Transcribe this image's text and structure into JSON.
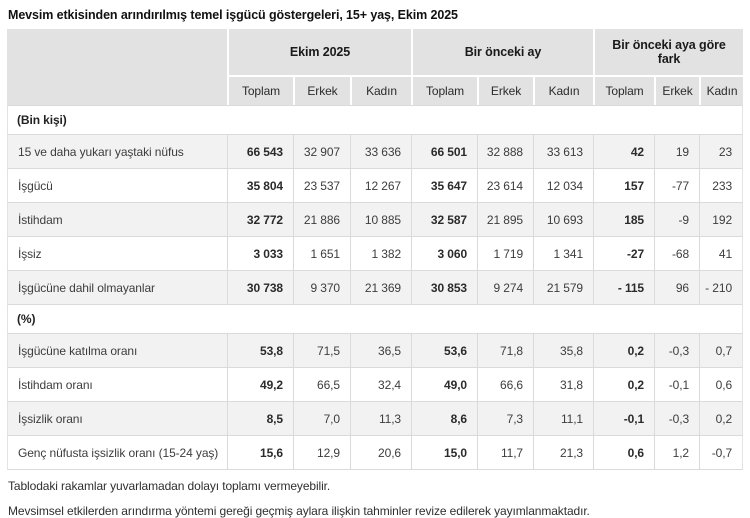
{
  "title": "Mevsim etkisinden arındırılmış temel işgücü göstergeleri, 15+ yaş, Ekim 2025",
  "table": {
    "column_groups": [
      {
        "label": "Ekim 2025"
      },
      {
        "label": "Bir önceki ay"
      },
      {
        "label": "Bir önceki aya göre fark"
      }
    ],
    "sub_headers": [
      "Toplam",
      "Erkek",
      "Kadın",
      "Toplam",
      "Erkek",
      "Kadın",
      "Toplam",
      "Erkek",
      "Kadın"
    ],
    "sections": [
      {
        "header": "(Bin kişi)",
        "rows": [
          {
            "label": "15 ve daha yukarı yaştaki nüfus",
            "values": [
              "66 543",
              "32 907",
              "33 636",
              "66 501",
              "32 888",
              "33 613",
              "42",
              "19",
              "23"
            ]
          },
          {
            "label": "İşgücü",
            "values": [
              "35 804",
              "23 537",
              "12 267",
              "35 647",
              "23 614",
              "12 034",
              "157",
              "-77",
              "233"
            ]
          },
          {
            "label": "İstihdam",
            "values": [
              "32 772",
              "21 886",
              "10 885",
              "32 587",
              "21 895",
              "10 693",
              "185",
              "-9",
              "192"
            ]
          },
          {
            "label": "İşsiz",
            "values": [
              "3 033",
              "1 651",
              "1 382",
              "3 060",
              "1 719",
              "1 341",
              "-27",
              "-68",
              "41"
            ]
          },
          {
            "label": "İşgücüne dahil olmayanlar",
            "values": [
              "30 738",
              "9 370",
              "21 369",
              "30 853",
              "9 274",
              "21 579",
              "- 115",
              "96",
              "- 210"
            ]
          }
        ]
      },
      {
        "header": "(%)",
        "rows": [
          {
            "label": "İşgücüne katılma oranı",
            "values": [
              "53,8",
              "71,5",
              "36,5",
              "53,6",
              "71,8",
              "35,8",
              "0,2",
              "-0,3",
              "0,7"
            ]
          },
          {
            "label": "İstihdam oranı",
            "values": [
              "49,2",
              "66,5",
              "32,4",
              "49,0",
              "66,6",
              "31,8",
              "0,2",
              "-0,1",
              "0,6"
            ]
          },
          {
            "label": "İşsizlik oranı",
            "values": [
              "8,5",
              "7,0",
              "11,3",
              "8,6",
              "7,3",
              "11,1",
              "-0,1",
              "-0,3",
              "0,2"
            ]
          },
          {
            "label": "Genç nüfusta işsizlik oranı (15-24 yaş)",
            "values": [
              "15,6",
              "12,9",
              "20,6",
              "15,0",
              "11,7",
              "21,3",
              "0,6",
              "1,2",
              "-0,7"
            ]
          }
        ]
      }
    ]
  },
  "footnotes": [
    "Tablodaki rakamlar yuvarlamadan dolayı toplamı vermeyebilir.",
    "Mevsimsel etkilerden arındırma yöntemi gereği geçmiş aylara ilişkin tahminler revize edilerek yayımlanmaktadır."
  ],
  "colors": {
    "header_bg": "#e2e2e2",
    "stripe_bg": "#f2f2f2",
    "grid_line": "#dadada",
    "text": "#3d3d3d"
  }
}
